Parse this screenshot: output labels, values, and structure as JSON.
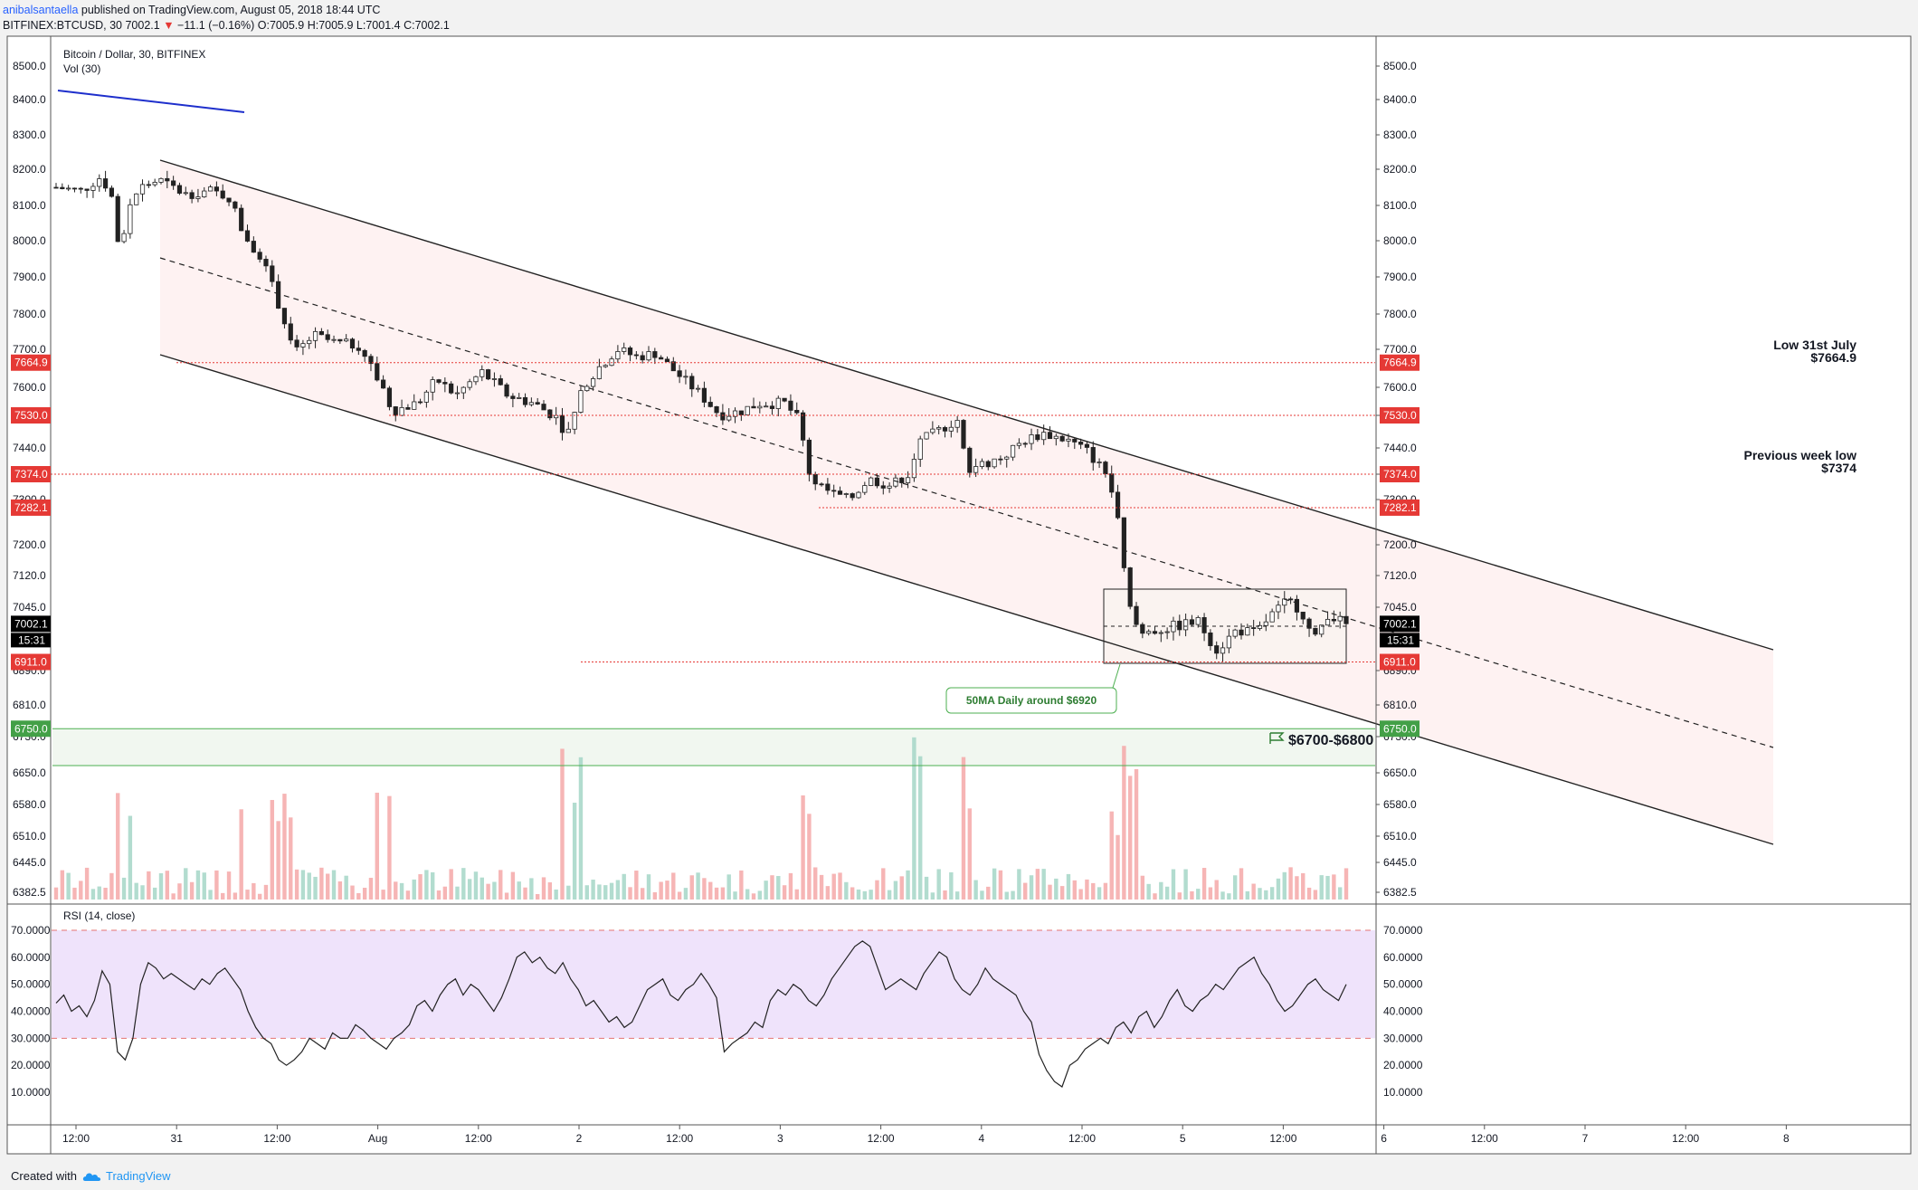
{
  "header": {
    "author": "anibalsantaella",
    "published": "published on TradingView.com, August 05, 2018 18:44 UTC",
    "symbol": "BITFINEX:BTCUSD, 30",
    "last": "7002.1",
    "change": "−11.1 (−0.16%)",
    "o_label": "O:",
    "o_val": "7005.9",
    "h_label": "H:",
    "h_val": "7005.9",
    "l_label": "L:",
    "l_val": "7001.4",
    "c_label": "C:",
    "c_val": "7002.1"
  },
  "footer": {
    "created_with": "Created with",
    "brand": "TradingView"
  },
  "colors": {
    "up": "#26a69a",
    "down": "#ef5350",
    "channel_fill": "#fde8e8",
    "rsi_fill": "#efe3fb",
    "ma_blue": "#1e2fcc"
  },
  "chart_data": [
    {
      "type": "candlestick",
      "title": "Bitcoin / Dollar, 30, BITFINEX",
      "subtitle": "Vol (30)",
      "y_ticks": [
        "8500.0",
        "8400.0",
        "8300.0",
        "8200.0",
        "8100.0",
        "8000.0",
        "7900.0",
        "7800.0",
        "7700.0",
        "7600.0",
        "7530.0",
        "7440.0",
        "7374.0",
        "7300.0",
        "7200.0",
        "7120.0",
        "7045.0",
        "6890.0",
        "6810.0",
        "6730.0",
        "6650.0",
        "6580.0",
        "6510.0",
        "6445.0",
        "6382.5"
      ],
      "x_ticks": [
        "12:00",
        "31",
        "12:00",
        "Aug",
        "12:00",
        "2",
        "12:00",
        "3",
        "12:00",
        "4",
        "12:00",
        "5",
        "12:00",
        "6",
        "12:00",
        "7",
        "12:00",
        "8"
      ],
      "price_levels": [
        {
          "label": "7664.9",
          "value": 7664.9
        },
        {
          "label": "7530.0",
          "value": 7530.0
        },
        {
          "label": "7374.0",
          "value": 7374.0
        },
        {
          "label": "7282.1",
          "value": 7282.1
        },
        {
          "label": "6911.0",
          "value": 6911.0
        }
      ],
      "zone_label": "6750.0",
      "current_price": "7002.1",
      "countdown": "15:31",
      "annotations": {
        "low_31": "Low 31st July",
        "low_31_val": "$7664.9",
        "prev_week": "Previous week low",
        "prev_week_val": "$7374",
        "ma50": "50MA Daily around $6920",
        "target": "$6700-$6800"
      },
      "close_path": [
        {
          "x": 0.0,
          "y": 8150
        },
        {
          "x": 0.02,
          "y": 8140
        },
        {
          "x": 0.035,
          "y": 8180
        },
        {
          "x": 0.045,
          "y": 8110
        },
        {
          "x": 0.05,
          "y": 7920
        },
        {
          "x": 0.055,
          "y": 8090
        },
        {
          "x": 0.065,
          "y": 8150
        },
        {
          "x": 0.08,
          "y": 8170
        },
        {
          "x": 0.1,
          "y": 8130
        },
        {
          "x": 0.12,
          "y": 8140
        },
        {
          "x": 0.135,
          "y": 8120
        },
        {
          "x": 0.145,
          "y": 8020
        },
        {
          "x": 0.16,
          "y": 7950
        },
        {
          "x": 0.175,
          "y": 7800
        },
        {
          "x": 0.185,
          "y": 7690
        },
        {
          "x": 0.2,
          "y": 7740
        },
        {
          "x": 0.215,
          "y": 7720
        },
        {
          "x": 0.235,
          "y": 7710
        },
        {
          "x": 0.245,
          "y": 7650
        },
        {
          "x": 0.26,
          "y": 7540
        },
        {
          "x": 0.28,
          "y": 7560
        },
        {
          "x": 0.295,
          "y": 7620
        },
        {
          "x": 0.31,
          "y": 7580
        },
        {
          "x": 0.33,
          "y": 7640
        },
        {
          "x": 0.35,
          "y": 7580
        },
        {
          "x": 0.37,
          "y": 7560
        },
        {
          "x": 0.39,
          "y": 7520
        },
        {
          "x": 0.395,
          "y": 7470
        },
        {
          "x": 0.41,
          "y": 7610
        },
        {
          "x": 0.42,
          "y": 7650
        },
        {
          "x": 0.435,
          "y": 7700
        },
        {
          "x": 0.45,
          "y": 7680
        },
        {
          "x": 0.465,
          "y": 7690
        },
        {
          "x": 0.48,
          "y": 7640
        },
        {
          "x": 0.5,
          "y": 7580
        },
        {
          "x": 0.515,
          "y": 7530
        },
        {
          "x": 0.53,
          "y": 7540
        },
        {
          "x": 0.545,
          "y": 7560
        },
        {
          "x": 0.565,
          "y": 7560
        },
        {
          "x": 0.575,
          "y": 7520
        },
        {
          "x": 0.585,
          "y": 7360
        },
        {
          "x": 0.6,
          "y": 7320
        },
        {
          "x": 0.615,
          "y": 7300
        },
        {
          "x": 0.63,
          "y": 7360
        },
        {
          "x": 0.645,
          "y": 7340
        },
        {
          "x": 0.66,
          "y": 7370
        },
        {
          "x": 0.67,
          "y": 7460
        },
        {
          "x": 0.685,
          "y": 7490
        },
        {
          "x": 0.7,
          "y": 7520
        },
        {
          "x": 0.705,
          "y": 7390
        },
        {
          "x": 0.72,
          "y": 7400
        },
        {
          "x": 0.735,
          "y": 7420
        },
        {
          "x": 0.75,
          "y": 7460
        },
        {
          "x": 0.765,
          "y": 7480
        },
        {
          "x": 0.785,
          "y": 7460
        },
        {
          "x": 0.8,
          "y": 7430
        },
        {
          "x": 0.815,
          "y": 7370
        },
        {
          "x": 0.825,
          "y": 7220
        },
        {
          "x": 0.83,
          "y": 7060
        },
        {
          "x": 0.84,
          "y": 6980
        },
        {
          "x": 0.855,
          "y": 6990
        },
        {
          "x": 0.87,
          "y": 7000
        },
        {
          "x": 0.885,
          "y": 7010
        },
        {
          "x": 0.9,
          "y": 6940
        },
        {
          "x": 0.915,
          "y": 6990
        },
        {
          "x": 0.93,
          "y": 6980
        },
        {
          "x": 0.94,
          "y": 7020
        },
        {
          "x": 0.955,
          "y": 7060
        },
        {
          "x": 0.965,
          "y": 7040
        },
        {
          "x": 0.975,
          "y": 6960
        },
        {
          "x": 0.985,
          "y": 7030
        },
        {
          "x": 1.0,
          "y": 7002
        }
      ]
    },
    {
      "type": "line",
      "title": "RSI (14, close)",
      "y_ticks": [
        "70.0000",
        "60.0000",
        "50.0000",
        "40.0000",
        "30.0000",
        "20.0000",
        "10.0000"
      ],
      "ylim": [
        10,
        70
      ],
      "values": [
        43,
        46,
        40,
        42,
        38,
        44,
        55,
        50,
        25,
        22,
        30,
        50,
        58,
        56,
        52,
        54,
        52,
        50,
        48,
        52,
        50,
        54,
        56,
        52,
        48,
        40,
        34,
        30,
        28,
        22,
        20,
        22,
        25,
        30,
        28,
        26,
        32,
        30,
        30,
        35,
        33,
        30,
        28,
        26,
        30,
        32,
        35,
        42,
        44,
        40,
        46,
        50,
        52,
        46,
        50,
        48,
        44,
        40,
        45,
        52,
        60,
        62,
        58,
        60,
        56,
        54,
        58,
        52,
        48,
        42,
        44,
        40,
        36,
        38,
        34,
        36,
        42,
        48,
        50,
        52,
        46,
        44,
        48,
        50,
        54,
        50,
        45,
        25,
        28,
        30,
        32,
        36,
        34,
        44,
        48,
        46,
        50,
        48,
        44,
        42,
        46,
        52,
        56,
        60,
        64,
        66,
        64,
        56,
        48,
        50,
        52,
        50,
        48,
        54,
        58,
        62,
        60,
        52,
        48,
        46,
        50,
        56,
        52,
        50,
        48,
        46,
        40,
        36,
        24,
        18,
        14,
        12,
        20,
        22,
        26,
        28,
        30,
        28,
        34,
        36,
        32,
        38,
        40,
        34,
        38,
        44,
        48,
        42,
        40,
        44,
        46,
        50,
        48,
        52,
        56,
        58,
        60,
        54,
        50,
        44,
        40,
        42,
        46,
        50,
        52,
        48,
        46,
        44,
        50
      ]
    }
  ]
}
